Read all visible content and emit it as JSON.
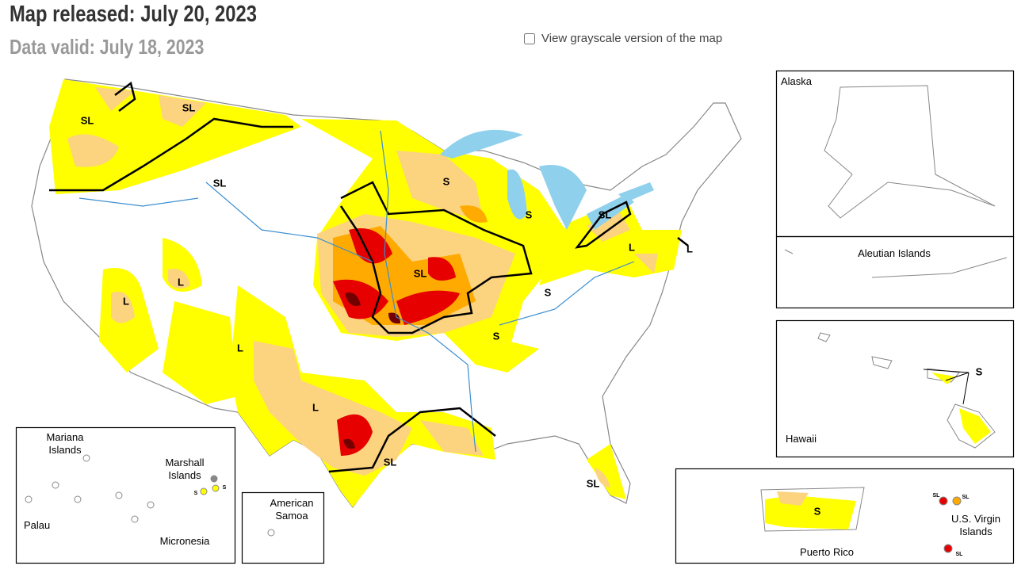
{
  "header": {
    "title": "Map released: July 20, 2023",
    "subtitle": "Data valid: July 18, 2023"
  },
  "grayscale_toggle": {
    "label": "View grayscale version of the map",
    "checked": false
  },
  "map": {
    "impact_labels": [
      "SL",
      "SL",
      "SL",
      "S",
      "S",
      "SL",
      "L",
      "L",
      "L",
      "L",
      "SL",
      "S",
      "L",
      "S",
      "L",
      "SL",
      "SL"
    ]
  },
  "insets": {
    "alaska": {
      "name": "Alaska"
    },
    "aleutian": {
      "name": "Aleutian Islands"
    },
    "hawaii": {
      "name": "Hawaii",
      "labels": [
        "S"
      ]
    },
    "puerto_rico": {
      "name": "Puerto Rico",
      "labels": [
        "S"
      ]
    },
    "virgin_islands": {
      "name": "U.S. Virgin Islands",
      "labels": [
        "SL",
        "SL",
        "SL"
      ]
    },
    "pacific": {
      "names": [
        "Mariana Islands",
        "Marshall Islands",
        "Palau",
        "Micronesia"
      ],
      "labels": [
        "S",
        "S"
      ]
    },
    "samoa": {
      "name": "American Samoa"
    }
  }
}
